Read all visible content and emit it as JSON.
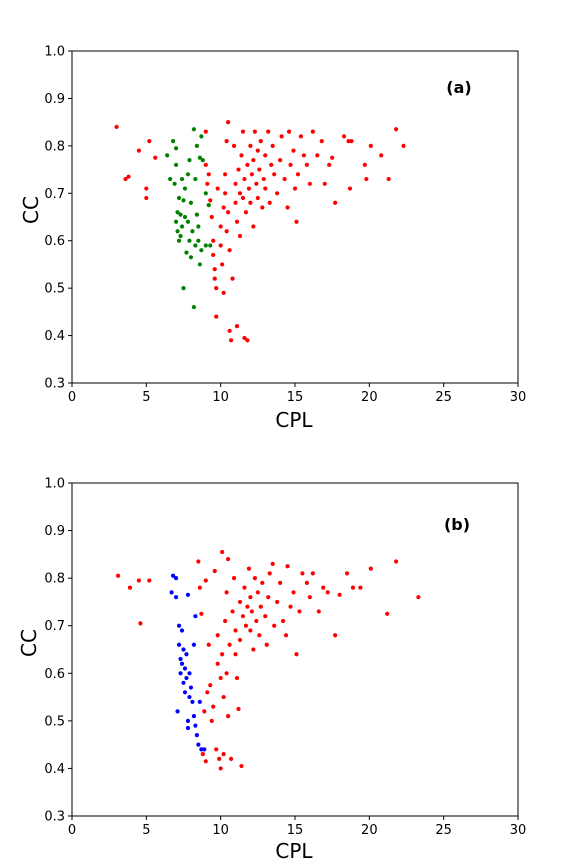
{
  "chart_data": [
    {
      "type": "scatter",
      "title": "",
      "annotation": "(a)",
      "xlabel": "CPL",
      "ylabel": "CC",
      "xlim": [
        0,
        30
      ],
      "ylim": [
        0.3,
        1.0
      ],
      "xticks": [
        "0",
        "5",
        "10",
        "15",
        "20",
        "25",
        "30"
      ],
      "yticks": [
        "0.3",
        "0.4",
        "0.5",
        "0.6",
        "0.7",
        "0.8",
        "0.9",
        "1.0"
      ],
      "grid": false,
      "series": [
        {
          "color": "#ff0000",
          "points": [
            [
              3.0,
              0.84
            ],
            [
              3.6,
              0.73
            ],
            [
              3.8,
              0.735
            ],
            [
              4.5,
              0.79
            ],
            [
              5.0,
              0.71
            ],
            [
              5.0,
              0.69
            ],
            [
              5.2,
              0.81
            ],
            [
              5.6,
              0.775
            ],
            [
              9.0,
              0.83
            ],
            [
              9.0,
              0.76
            ],
            [
              9.1,
              0.72
            ],
            [
              9.2,
              0.74
            ],
            [
              9.3,
              0.685
            ],
            [
              9.4,
              0.65
            ],
            [
              9.5,
              0.6
            ],
            [
              9.5,
              0.57
            ],
            [
              9.6,
              0.54
            ],
            [
              9.6,
              0.52
            ],
            [
              9.7,
              0.5
            ],
            [
              9.7,
              0.44
            ],
            [
              9.8,
              0.71
            ],
            [
              10.0,
              0.63
            ],
            [
              10.0,
              0.59
            ],
            [
              10.1,
              0.55
            ],
            [
              10.2,
              0.49
            ],
            [
              10.2,
              0.67
            ],
            [
              10.3,
              0.7
            ],
            [
              10.3,
              0.74
            ],
            [
              10.4,
              0.62
            ],
            [
              10.4,
              0.81
            ],
            [
              10.5,
              0.85
            ],
            [
              10.5,
              0.66
            ],
            [
              10.6,
              0.58
            ],
            [
              10.6,
              0.41
            ],
            [
              10.7,
              0.39
            ],
            [
              10.8,
              0.52
            ],
            [
              10.9,
              0.8
            ],
            [
              11.0,
              0.68
            ],
            [
              11.0,
              0.72
            ],
            [
              11.1,
              0.64
            ],
            [
              11.1,
              0.42
            ],
            [
              11.2,
              0.75
            ],
            [
              11.3,
              0.7
            ],
            [
              11.3,
              0.61
            ],
            [
              11.4,
              0.78
            ],
            [
              11.5,
              0.83
            ],
            [
              11.5,
              0.69
            ],
            [
              11.6,
              0.73
            ],
            [
              11.6,
              0.395
            ],
            [
              11.7,
              0.66
            ],
            [
              11.8,
              0.76
            ],
            [
              11.8,
              0.39
            ],
            [
              11.9,
              0.71
            ],
            [
              12.0,
              0.8
            ],
            [
              12.0,
              0.68
            ],
            [
              12.1,
              0.74
            ],
            [
              12.2,
              0.77
            ],
            [
              12.2,
              0.63
            ],
            [
              12.3,
              0.83
            ],
            [
              12.4,
              0.72
            ],
            [
              12.5,
              0.69
            ],
            [
              12.5,
              0.79
            ],
            [
              12.6,
              0.75
            ],
            [
              12.7,
              0.81
            ],
            [
              12.8,
              0.67
            ],
            [
              12.9,
              0.73
            ],
            [
              13.0,
              0.78
            ],
            [
              13.0,
              0.71
            ],
            [
              13.2,
              0.83
            ],
            [
              13.3,
              0.68
            ],
            [
              13.4,
              0.76
            ],
            [
              13.5,
              0.8
            ],
            [
              13.6,
              0.74
            ],
            [
              13.8,
              0.7
            ],
            [
              14.0,
              0.77
            ],
            [
              14.1,
              0.82
            ],
            [
              14.3,
              0.73
            ],
            [
              14.5,
              0.67
            ],
            [
              14.6,
              0.83
            ],
            [
              14.7,
              0.76
            ],
            [
              14.9,
              0.79
            ],
            [
              15.0,
              0.71
            ],
            [
              15.1,
              0.64
            ],
            [
              15.2,
              0.74
            ],
            [
              15.4,
              0.82
            ],
            [
              15.6,
              0.78
            ],
            [
              15.8,
              0.76
            ],
            [
              16.0,
              0.72
            ],
            [
              16.2,
              0.83
            ],
            [
              16.5,
              0.78
            ],
            [
              16.8,
              0.81
            ],
            [
              17.0,
              0.72
            ],
            [
              17.3,
              0.76
            ],
            [
              17.5,
              0.775
            ],
            [
              17.7,
              0.68
            ],
            [
              18.3,
              0.82
            ],
            [
              18.6,
              0.81
            ],
            [
              18.7,
              0.71
            ],
            [
              18.8,
              0.81
            ],
            [
              19.7,
              0.76
            ],
            [
              19.8,
              0.73
            ],
            [
              20.1,
              0.8
            ],
            [
              20.8,
              0.78
            ],
            [
              21.3,
              0.73
            ],
            [
              21.8,
              0.835
            ],
            [
              22.3,
              0.8
            ]
          ]
        },
        {
          "color": "#008000",
          "points": [
            [
              6.4,
              0.78
            ],
            [
              6.6,
              0.73
            ],
            [
              6.8,
              0.81
            ],
            [
              6.9,
              0.72
            ],
            [
              7.0,
              0.795
            ],
            [
              7.0,
              0.76
            ],
            [
              7.0,
              0.64
            ],
            [
              7.1,
              0.62
            ],
            [
              7.1,
              0.66
            ],
            [
              7.2,
              0.6
            ],
            [
              7.2,
              0.69
            ],
            [
              7.3,
              0.655
            ],
            [
              7.3,
              0.61
            ],
            [
              7.4,
              0.73
            ],
            [
              7.4,
              0.63
            ],
            [
              7.5,
              0.685
            ],
            [
              7.5,
              0.5
            ],
            [
              7.6,
              0.71
            ],
            [
              7.6,
              0.65
            ],
            [
              7.7,
              0.575
            ],
            [
              7.8,
              0.74
            ],
            [
              7.8,
              0.64
            ],
            [
              7.9,
              0.77
            ],
            [
              7.9,
              0.6
            ],
            [
              8.0,
              0.68
            ],
            [
              8.0,
              0.565
            ],
            [
              8.1,
              0.62
            ],
            [
              8.2,
              0.835
            ],
            [
              8.2,
              0.46
            ],
            [
              8.3,
              0.73
            ],
            [
              8.3,
              0.59
            ],
            [
              8.4,
              0.8
            ],
            [
              8.4,
              0.655
            ],
            [
              8.5,
              0.63
            ],
            [
              8.5,
              0.6
            ],
            [
              8.6,
              0.775
            ],
            [
              8.6,
              0.55
            ],
            [
              8.7,
              0.82
            ],
            [
              8.7,
              0.58
            ],
            [
              8.8,
              0.77
            ],
            [
              9.0,
              0.7
            ],
            [
              9.0,
              0.59
            ],
            [
              9.2,
              0.675
            ],
            [
              9.3,
              0.59
            ]
          ]
        }
      ]
    },
    {
      "type": "scatter",
      "title": "",
      "annotation": "(b)",
      "xlabel": "CPL",
      "ylabel": "CC",
      "xlim": [
        0,
        30
      ],
      "ylim": [
        0.3,
        1.0
      ],
      "xticks": [
        "0",
        "5",
        "10",
        "15",
        "20",
        "25",
        "30"
      ],
      "yticks": [
        "0.3",
        "0.4",
        "0.5",
        "0.6",
        "0.7",
        "0.8",
        "0.9",
        "1.0"
      ],
      "grid": false,
      "series": [
        {
          "color": "#ff0000",
          "points": [
            [
              3.1,
              0.805
            ],
            [
              3.9,
              0.78
            ],
            [
              4.5,
              0.795
            ],
            [
              4.6,
              0.705
            ],
            [
              5.2,
              0.795
            ],
            [
              8.5,
              0.835
            ],
            [
              8.6,
              0.78
            ],
            [
              8.7,
              0.725
            ],
            [
              8.8,
              0.43
            ],
            [
              8.9,
              0.52
            ],
            [
              9.0,
              0.795
            ],
            [
              9.0,
              0.415
            ],
            [
              9.1,
              0.56
            ],
            [
              9.2,
              0.66
            ],
            [
              9.3,
              0.575
            ],
            [
              9.4,
              0.5
            ],
            [
              9.5,
              0.53
            ],
            [
              9.6,
              0.815
            ],
            [
              9.7,
              0.44
            ],
            [
              9.8,
              0.62
            ],
            [
              9.8,
              0.68
            ],
            [
              9.9,
              0.42
            ],
            [
              10.0,
              0.59
            ],
            [
              10.0,
              0.4
            ],
            [
              10.1,
              0.855
            ],
            [
              10.1,
              0.64
            ],
            [
              10.2,
              0.43
            ],
            [
              10.2,
              0.55
            ],
            [
              10.3,
              0.71
            ],
            [
              10.4,
              0.77
            ],
            [
              10.4,
              0.6
            ],
            [
              10.5,
              0.84
            ],
            [
              10.5,
              0.51
            ],
            [
              10.6,
              0.66
            ],
            [
              10.7,
              0.42
            ],
            [
              10.8,
              0.73
            ],
            [
              10.9,
              0.8
            ],
            [
              11.0,
              0.69
            ],
            [
              11.0,
              0.64
            ],
            [
              11.1,
              0.59
            ],
            [
              11.2,
              0.525
            ],
            [
              11.3,
              0.75
            ],
            [
              11.3,
              0.67
            ],
            [
              11.4,
              0.405
            ],
            [
              11.5,
              0.72
            ],
            [
              11.6,
              0.78
            ],
            [
              11.7,
              0.7
            ],
            [
              11.8,
              0.74
            ],
            [
              11.9,
              0.82
            ],
            [
              12.0,
              0.76
            ],
            [
              12.0,
              0.69
            ],
            [
              12.1,
              0.73
            ],
            [
              12.2,
              0.65
            ],
            [
              12.3,
              0.8
            ],
            [
              12.4,
              0.71
            ],
            [
              12.5,
              0.77
            ],
            [
              12.6,
              0.68
            ],
            [
              12.7,
              0.74
            ],
            [
              12.8,
              0.79
            ],
            [
              13.0,
              0.72
            ],
            [
              13.1,
              0.66
            ],
            [
              13.2,
              0.76
            ],
            [
              13.3,
              0.81
            ],
            [
              13.5,
              0.83
            ],
            [
              13.6,
              0.7
            ],
            [
              13.8,
              0.75
            ],
            [
              14.0,
              0.79
            ],
            [
              14.2,
              0.71
            ],
            [
              14.4,
              0.68
            ],
            [
              14.5,
              0.825
            ],
            [
              14.7,
              0.74
            ],
            [
              14.9,
              0.77
            ],
            [
              15.1,
              0.64
            ],
            [
              15.3,
              0.73
            ],
            [
              15.5,
              0.81
            ],
            [
              15.8,
              0.79
            ],
            [
              16.0,
              0.76
            ],
            [
              16.2,
              0.81
            ],
            [
              16.6,
              0.73
            ],
            [
              16.9,
              0.78
            ],
            [
              17.2,
              0.77
            ],
            [
              17.7,
              0.68
            ],
            [
              18.0,
              0.765
            ],
            [
              18.5,
              0.81
            ],
            [
              18.9,
              0.78
            ],
            [
              19.4,
              0.78
            ],
            [
              20.1,
              0.82
            ],
            [
              21.2,
              0.725
            ],
            [
              21.8,
              0.835
            ],
            [
              23.3,
              0.76
            ]
          ]
        },
        {
          "color": "#0000ff",
          "points": [
            [
              6.7,
              0.77
            ],
            [
              6.8,
              0.805
            ],
            [
              7.0,
              0.8
            ],
            [
              7.0,
              0.76
            ],
            [
              7.1,
              0.52
            ],
            [
              7.2,
              0.7
            ],
            [
              7.2,
              0.66
            ],
            [
              7.3,
              0.63
            ],
            [
              7.3,
              0.6
            ],
            [
              7.4,
              0.69
            ],
            [
              7.4,
              0.62
            ],
            [
              7.5,
              0.65
            ],
            [
              7.5,
              0.58
            ],
            [
              7.6,
              0.56
            ],
            [
              7.6,
              0.61
            ],
            [
              7.7,
              0.64
            ],
            [
              7.7,
              0.59
            ],
            [
              7.8,
              0.765
            ],
            [
              7.8,
              0.5
            ],
            [
              7.8,
              0.485
            ],
            [
              7.9,
              0.55
            ],
            [
              7.9,
              0.6
            ],
            [
              8.0,
              0.57
            ],
            [
              8.1,
              0.54
            ],
            [
              8.2,
              0.66
            ],
            [
              8.2,
              0.51
            ],
            [
              8.3,
              0.49
            ],
            [
              8.3,
              0.72
            ],
            [
              8.4,
              0.47
            ],
            [
              8.5,
              0.45
            ],
            [
              8.6,
              0.54
            ],
            [
              8.7,
              0.44
            ],
            [
              8.9,
              0.44
            ]
          ]
        }
      ]
    }
  ]
}
